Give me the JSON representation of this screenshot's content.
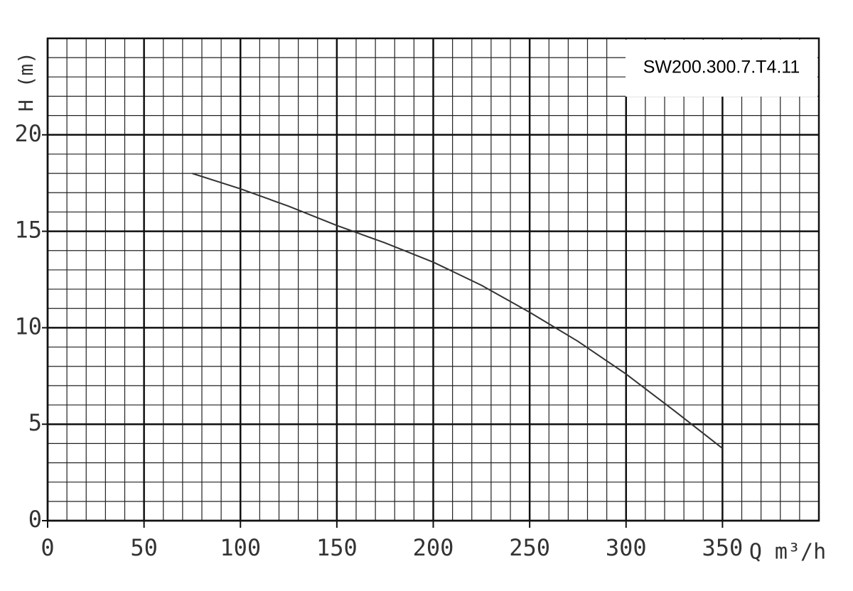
{
  "chart_data": {
    "type": "line",
    "annotation": "SW200.300.7.T4.11",
    "x_label": "Q m³/h",
    "y_label": "H (m)",
    "x": [
      75,
      100,
      125,
      150,
      175,
      200,
      225,
      250,
      275,
      300,
      325,
      350
    ],
    "values": [
      18,
      17.2,
      16.3,
      15.3,
      14.4,
      13.4,
      12.2,
      10.8,
      9.3,
      7.6,
      5.7,
      3.75
    ],
    "color": "#333333",
    "xlim": [
      0,
      400
    ],
    "xticks": [
      0,
      50,
      100,
      150,
      200,
      250,
      300,
      350
    ],
    "ylim": [
      0,
      25
    ],
    "yticks": [
      0,
      5,
      10,
      15,
      20
    ],
    "grid": true
  }
}
